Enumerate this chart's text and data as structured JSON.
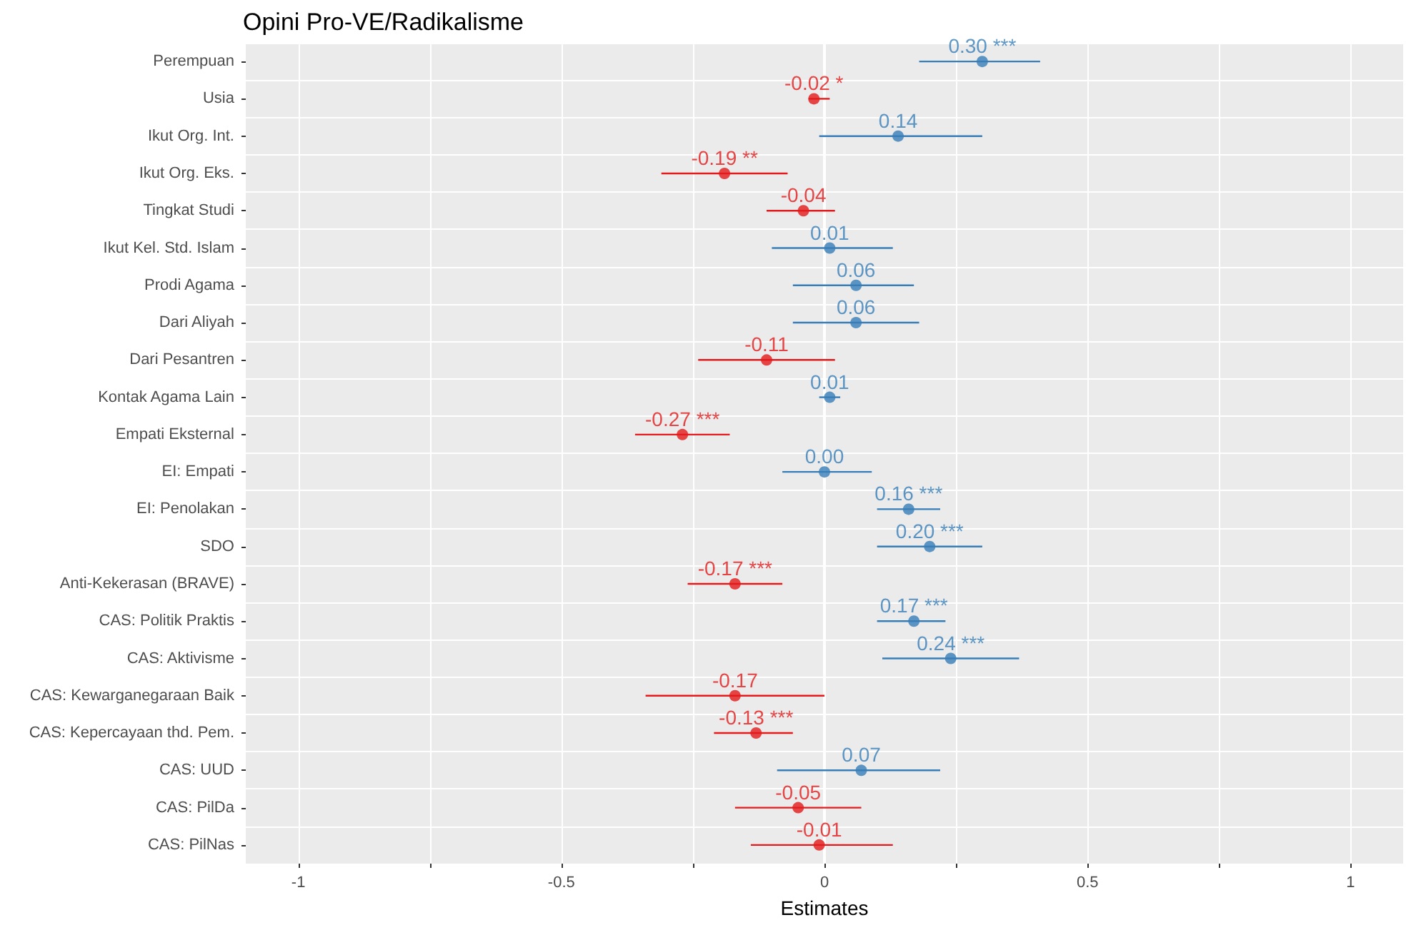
{
  "chart_data": {
    "type": "scatter",
    "orientation": "horizontal",
    "title": "Opini Pro-VE/Radikalisme",
    "xlabel": "Estimates",
    "categories": [
      "Perempuan",
      "Usia",
      "Ikut Org. Int.",
      "Ikut Org. Eks.",
      "Tingkat Studi",
      "Ikut Kel. Std. Islam",
      "Prodi Agama",
      "Dari Aliyah",
      "Dari Pesantren",
      "Kontak Agama Lain",
      "Empati Eksternal",
      "EI: Empati",
      "EI: Penolakan",
      "SDO",
      "Anti-Kekerasan (BRAVE)",
      "CAS: Politik Praktis",
      "CAS: Aktivisme",
      "CAS: Kewarganegaraan Baik",
      "CAS: Kepercayaan thd. Pem.",
      "CAS: UUD",
      "CAS: PilDa",
      "CAS: PilNas"
    ],
    "values": [
      0.3,
      -0.02,
      0.14,
      -0.19,
      -0.04,
      0.01,
      0.06,
      0.06,
      -0.11,
      0.01,
      -0.27,
      0.0,
      0.16,
      0.2,
      -0.17,
      0.17,
      0.24,
      -0.17,
      -0.13,
      0.07,
      -0.05,
      -0.01
    ],
    "value_labels": [
      "0.30 ***",
      "-0.02 *",
      "0.14",
      "-0.19 **",
      "-0.04",
      "0.01",
      "0.06",
      "0.06",
      "-0.11",
      "0.01",
      "-0.27 ***",
      "0.00",
      "0.16 ***",
      "0.20 ***",
      "-0.17 ***",
      "0.17 ***",
      "0.24 ***",
      "-0.17",
      "-0.13 ***",
      "0.07",
      "-0.05",
      "-0.01"
    ],
    "colors": [
      "#377eb8",
      "#e41a1c",
      "#377eb8",
      "#e41a1c",
      "#e41a1c",
      "#377eb8",
      "#377eb8",
      "#377eb8",
      "#e41a1c",
      "#377eb8",
      "#e41a1c",
      "#377eb8",
      "#377eb8",
      "#377eb8",
      "#e41a1c",
      "#377eb8",
      "#377eb8",
      "#e41a1c",
      "#e41a1c",
      "#377eb8",
      "#e41a1c",
      "#e41a1c"
    ],
    "errors": [
      [
        0.18,
        0.41
      ],
      [
        -0.03,
        0.01
      ],
      [
        -0.01,
        0.3
      ],
      [
        -0.31,
        -0.07
      ],
      [
        -0.11,
        0.02
      ],
      [
        -0.1,
        0.13
      ],
      [
        -0.06,
        0.17
      ],
      [
        -0.06,
        0.18
      ],
      [
        -0.24,
        0.02
      ],
      [
        -0.01,
        0.03
      ],
      [
        -0.36,
        -0.18
      ],
      [
        -0.08,
        0.09
      ],
      [
        0.1,
        0.22
      ],
      [
        0.1,
        0.3
      ],
      [
        -0.26,
        -0.08
      ],
      [
        0.1,
        0.23
      ],
      [
        0.11,
        0.37
      ],
      [
        -0.34,
        0.0
      ],
      [
        -0.21,
        -0.06
      ],
      [
        -0.09,
        0.22
      ],
      [
        -0.17,
        0.07
      ],
      [
        -0.14,
        0.13
      ]
    ],
    "xlim": [
      -1.1,
      1.1
    ],
    "xticks": [
      -1,
      {
        "value": -0.75,
        "label": null
      },
      -0.5,
      {
        "value": -0.25,
        "label": null
      },
      0,
      {
        "value": 0.25,
        "label": null
      },
      0.5,
      {
        "value": 0.75,
        "label": null
      },
      1
    ],
    "ref_lines": [
      {
        "axis": "x",
        "value": 0,
        "color": "#ffffff"
      }
    ],
    "grid": true,
    "marker": "circle"
  }
}
